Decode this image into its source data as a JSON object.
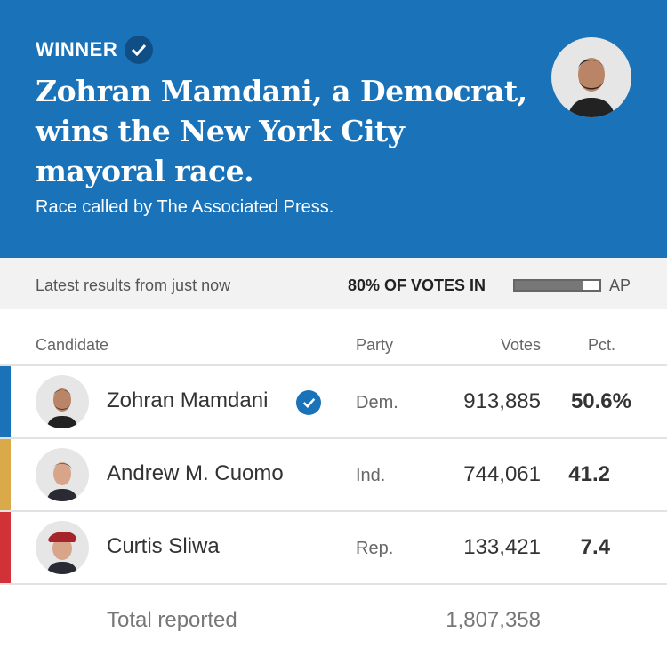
{
  "header": {
    "winner_label": "WINNER",
    "headline": "Zohran Mamdani, a Democrat, wins the New York City mayoral race.",
    "subtitle": "Race called by The Associated Press.",
    "color": "#1a73b9"
  },
  "status": {
    "latest": "Latest results from just now",
    "votes_in": "80% OF VOTES IN",
    "votes_in_pct": 80,
    "source": "AP"
  },
  "columns": {
    "candidate": "Candidate",
    "party": "Party",
    "votes": "Votes",
    "pct": "Pct."
  },
  "candidates": [
    {
      "name": "Zohran Mamdani",
      "party": "Dem.",
      "votes": "913,885",
      "pct": "50.6%",
      "color": "#1a73b9",
      "winner": true
    },
    {
      "name": "Andrew M. Cuomo",
      "party": "Ind.",
      "votes": "744,061",
      "pct": "41.2",
      "color": "#d9a94a",
      "winner": false
    },
    {
      "name": "Curtis Sliwa",
      "party": "Rep.",
      "votes": "133,421",
      "pct": "7.4",
      "color": "#d03238",
      "winner": false
    }
  ],
  "total": {
    "label": "Total reported",
    "votes": "1,807,358"
  }
}
